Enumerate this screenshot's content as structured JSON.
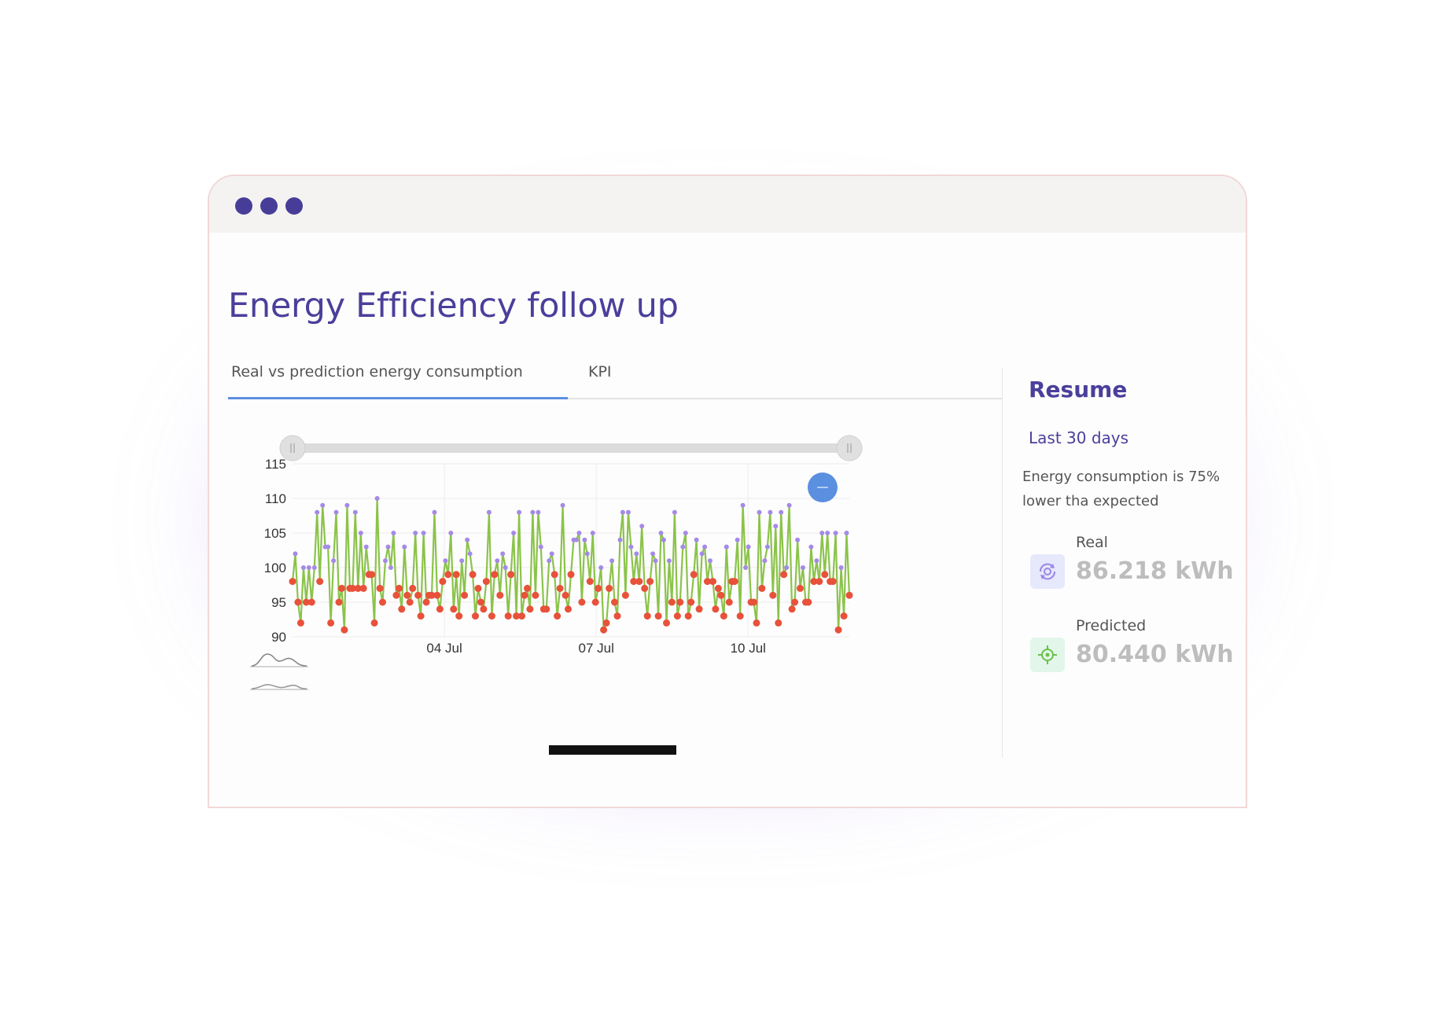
{
  "window": {
    "title": "Energy Efficiency follow up",
    "controls": [
      "dot",
      "dot",
      "dot"
    ]
  },
  "tabs": [
    {
      "label": "Real vs prediction energy consumption",
      "active": true
    },
    {
      "label": "KPI",
      "active": false
    }
  ],
  "sidebar": {
    "title": "Resume",
    "period": "Last 30 days",
    "description": "Energy consumption is 75% lower tha expected",
    "kpis": [
      {
        "label": "Real",
        "value": "86.218 kWh",
        "icon": "eye-refresh-icon"
      },
      {
        "label": "Predicted",
        "value": "80.440 kWh",
        "icon": "target-icon"
      }
    ]
  },
  "colors": {
    "accent": "#4a3f9b",
    "tab_underline": "#5b8fe0",
    "line": "#8bc34a",
    "above_marker": "#a58ae6",
    "below_marker": "#e8513a",
    "zoom_button": "#5b8fe0"
  },
  "chart_data": {
    "type": "line",
    "title": "",
    "xlabel": "",
    "ylabel": "",
    "ylim": [
      90,
      115
    ],
    "yticks": [
      90,
      95,
      100,
      105,
      110,
      115
    ],
    "x_tick_labels": [
      "04 Jul",
      "07 Jul",
      "10 Jul"
    ],
    "x_tick_dates": [
      "2021-07-04",
      "2021-07-07",
      "2021-07-10"
    ],
    "x_range": [
      "2021-07-01 00:00",
      "2021-07-12 00:00"
    ],
    "grid": true,
    "marker_rule": "values >= 100 purple, values < 100 red",
    "series": [
      {
        "values": [
          98,
          102,
          95,
          92,
          100,
          95,
          100,
          95,
          100,
          108,
          98,
          109,
          103,
          103,
          92,
          101,
          108,
          95,
          97,
          91,
          109,
          97,
          97,
          108,
          97,
          105,
          97,
          103,
          99,
          99,
          92,
          110,
          97,
          95,
          101,
          103,
          100,
          105,
          96,
          97,
          94,
          103,
          96,
          95,
          97,
          105,
          96,
          93,
          105,
          95,
          96,
          96,
          108,
          96,
          94,
          98,
          101,
          99,
          105,
          94,
          99,
          93,
          101,
          96,
          104,
          102,
          99,
          93,
          97,
          95,
          94,
          98,
          108,
          93,
          99,
          101,
          96,
          102,
          100,
          93,
          99,
          105,
          93,
          108,
          93,
          96,
          97,
          94,
          108,
          96,
          108,
          103,
          94,
          94,
          101,
          102,
          99,
          93,
          97,
          109,
          96,
          94,
          99,
          104,
          104,
          105,
          95,
          104,
          102,
          98,
          105,
          95,
          97,
          100,
          91,
          92,
          97,
          101,
          95,
          93,
          104,
          108,
          96,
          108,
          103,
          98,
          102,
          98,
          106,
          97,
          93,
          98,
          102,
          101,
          93,
          105,
          104,
          92,
          101,
          95,
          108,
          93,
          95,
          103,
          105,
          93,
          95,
          99,
          104,
          94,
          102,
          103,
          98,
          101,
          98,
          94,
          97,
          96,
          93,
          103,
          95,
          98,
          98,
          104,
          93,
          109,
          100,
          103,
          95,
          95,
          92,
          108,
          97,
          101,
          103,
          108,
          96,
          106,
          92,
          108,
          99,
          100,
          109,
          94,
          95,
          104,
          97,
          100,
          95,
          95,
          103,
          98,
          101,
          98,
          105,
          99,
          105,
          98,
          98,
          105,
          91,
          100,
          93,
          105,
          96
        ]
      }
    ]
  }
}
